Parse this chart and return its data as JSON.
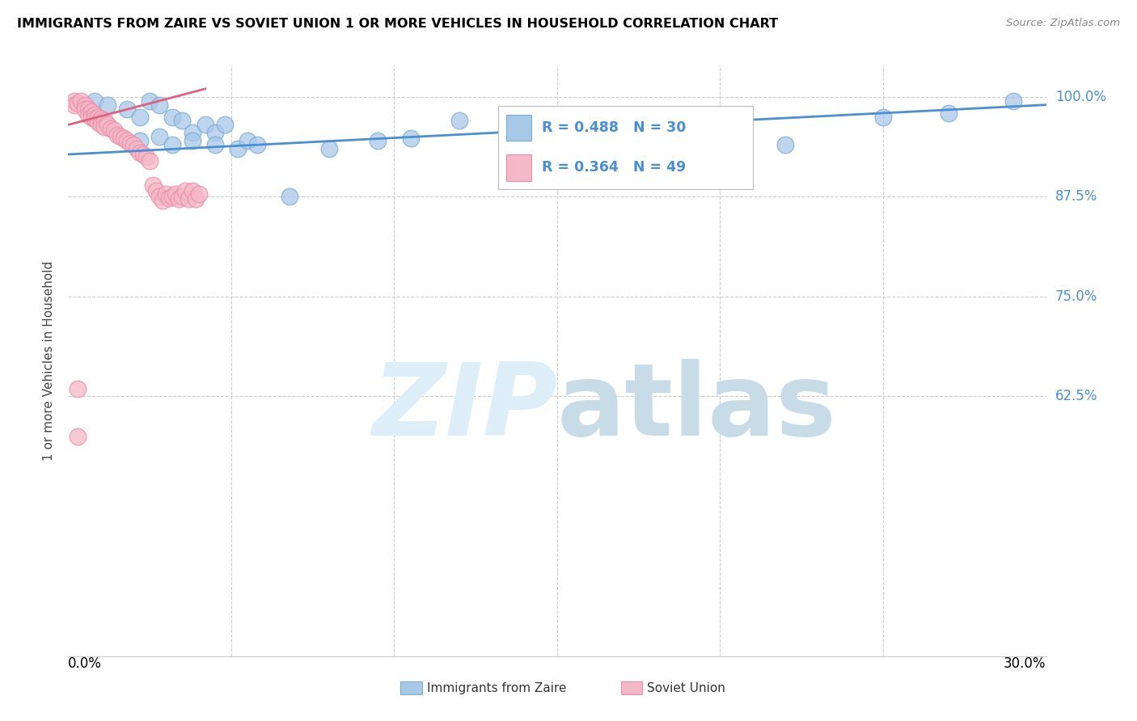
{
  "title": "IMMIGRANTS FROM ZAIRE VS SOVIET UNION 1 OR MORE VEHICLES IN HOUSEHOLD CORRELATION CHART",
  "source": "Source: ZipAtlas.com",
  "ylabel": "1 or more Vehicles in Household",
  "ytick_values": [
    1.0,
    0.875,
    0.75,
    0.625
  ],
  "ytick_labels": [
    "100.0%",
    "87.5%",
    "75.0%",
    "62.5%"
  ],
  "xlim": [
    0.0,
    0.3
  ],
  "ylim": [
    0.3,
    1.04
  ],
  "legend_blue_r": "R = 0.488",
  "legend_blue_n": "N = 30",
  "legend_pink_r": "R = 0.364",
  "legend_pink_n": "N = 49",
  "blue_color": "#a8c8e8",
  "blue_edge_color": "#7aadd4",
  "blue_line_color": "#4a8fd4",
  "pink_color": "#f5b8c8",
  "pink_edge_color": "#e890a8",
  "pink_line_color": "#e06080",
  "grid_color": "#cccccc",
  "blue_scatter_x": [
    0.008,
    0.012,
    0.025,
    0.028,
    0.018,
    0.022,
    0.032,
    0.035,
    0.038,
    0.042,
    0.045,
    0.048,
    0.022,
    0.028,
    0.032,
    0.038,
    0.045,
    0.052,
    0.055,
    0.058,
    0.068,
    0.08,
    0.095,
    0.105,
    0.12,
    0.16,
    0.22,
    0.25,
    0.27,
    0.29
  ],
  "blue_scatter_y": [
    0.995,
    0.99,
    0.995,
    0.99,
    0.985,
    0.975,
    0.975,
    0.97,
    0.955,
    0.965,
    0.955,
    0.965,
    0.945,
    0.95,
    0.94,
    0.945,
    0.94,
    0.935,
    0.945,
    0.94,
    0.875,
    0.935,
    0.945,
    0.948,
    0.97,
    0.96,
    0.94,
    0.975,
    0.98,
    0.995
  ],
  "pink_scatter_x": [
    0.002,
    0.002,
    0.003,
    0.004,
    0.005,
    0.005,
    0.006,
    0.006,
    0.007,
    0.007,
    0.008,
    0.008,
    0.009,
    0.009,
    0.01,
    0.01,
    0.011,
    0.011,
    0.012,
    0.013,
    0.014,
    0.015,
    0.016,
    0.017,
    0.018,
    0.019,
    0.02,
    0.021,
    0.022,
    0.023,
    0.024,
    0.025,
    0.026,
    0.027,
    0.028,
    0.029,
    0.03,
    0.031,
    0.032,
    0.033,
    0.034,
    0.035,
    0.036,
    0.037,
    0.038,
    0.039,
    0.04,
    0.003,
    0.003
  ],
  "pink_scatter_y": [
    0.995,
    0.99,
    0.992,
    0.995,
    0.99,
    0.985,
    0.985,
    0.978,
    0.982,
    0.975,
    0.978,
    0.972,
    0.975,
    0.968,
    0.972,
    0.965,
    0.97,
    0.962,
    0.965,
    0.96,
    0.958,
    0.952,
    0.95,
    0.948,
    0.945,
    0.942,
    0.94,
    0.935,
    0.93,
    0.928,
    0.925,
    0.92,
    0.89,
    0.882,
    0.875,
    0.87,
    0.878,
    0.873,
    0.875,
    0.878,
    0.872,
    0.875,
    0.882,
    0.872,
    0.882,
    0.872,
    0.878,
    0.635,
    0.575
  ],
  "blue_trend_x": [
    0.0,
    0.3
  ],
  "blue_trend_y": [
    0.928,
    0.99
  ],
  "pink_trend_x": [
    0.0,
    0.042
  ],
  "pink_trend_y": [
    0.965,
    1.01
  ]
}
